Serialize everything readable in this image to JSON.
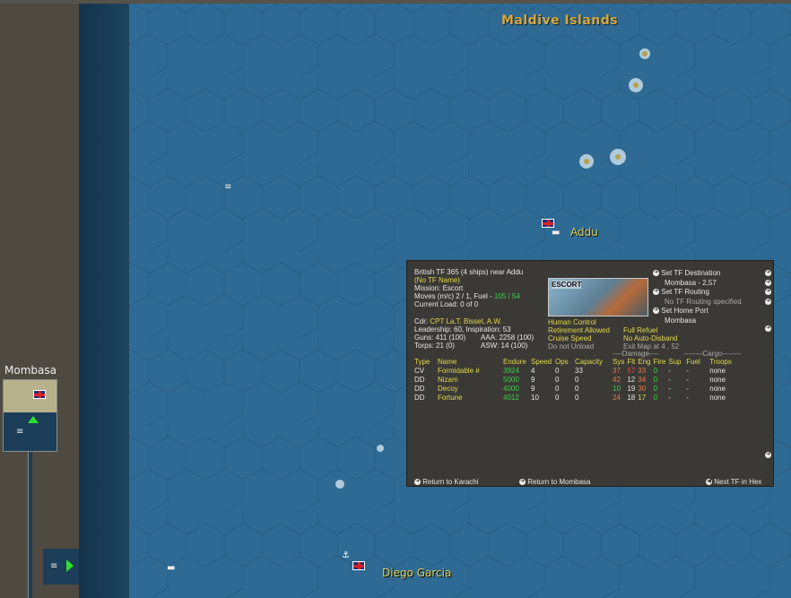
{
  "map": {
    "labels": {
      "maldives": "Maldive Islands",
      "addu": "Addu",
      "diego_garcia": "Diego Garcia",
      "mombasa": "Mombasa"
    },
    "colors": {
      "sea": "#2e6a93",
      "land": "#4f4a41",
      "label": "#d9a83a",
      "port_label": "#e2d25a"
    }
  },
  "panel": {
    "title": "British TF 365 (4 ships) near Addu",
    "tf_name": "(No TF Name)",
    "mission": "Mission: Escort",
    "moves": "Moves (m/c) 2 / 1, Fuel - ",
    "fuel": "105 / 54",
    "load": "Current Load: 0 of 0",
    "cdr_label": "Cdr:",
    "cdr": "CPT La.T. Bisset, A.W.",
    "leadership": "Leadership: 60, Inspiration: 53",
    "guns": "Guns: 411 (100)",
    "aaa": "AAA: 2258 (100)",
    "torps": "Torps: 21 (0)",
    "asw": "ASW: 14 (100)",
    "image_label": "ESCORT",
    "status": {
      "control": "Human Control",
      "retire": "Retirement Allowed",
      "refuel": "Full Refuel",
      "speed": "Cruise Speed",
      "disband": "No Auto-Disband",
      "unload": "Do not Unload",
      "exit": "Exit Map at 4 , 52"
    },
    "actions": {
      "dest": "Set TF Destination",
      "dest_val": "Mombasa - 2,57",
      "routing": "Set TF Routing",
      "routing_val": "No TF Routing specified",
      "home": "Set Home Port",
      "home_val": "Mombasa"
    },
    "groups": {
      "damage": "----Damage----",
      "cargo": "--------Cargo--------"
    },
    "headers": [
      "Type",
      "Name",
      "Endure",
      "Speed",
      "Ops",
      "Capacity",
      "Sys",
      "Flt",
      "Eng",
      "Fire",
      "Sup",
      "Fuel",
      "Troops"
    ],
    "ships": [
      {
        "type": "CV",
        "name": "Formidable #",
        "endure": "3924",
        "speed": "4",
        "ops": "0",
        "cap": "33",
        "sys": "37",
        "flt": "57",
        "eng": "33",
        "fire": "0",
        "sup": "-",
        "fuel": "-",
        "troops": "none"
      },
      {
        "type": "DD",
        "name": "Nizam",
        "endure": "5000",
        "speed": "9",
        "ops": "0",
        "cap": "0",
        "sys": "42",
        "flt": "12",
        "eng": "34",
        "fire": "0",
        "sup": "-",
        "fuel": "-",
        "troops": "none"
      },
      {
        "type": "DD",
        "name": "Decoy",
        "endure": "4000",
        "speed": "9",
        "ops": "0",
        "cap": "0",
        "sys": "10",
        "flt": "19",
        "eng": "30",
        "fire": "0",
        "sup": "-",
        "fuel": "-",
        "troops": "none"
      },
      {
        "type": "DD",
        "name": "Fortune",
        "endure": "4012",
        "speed": "10",
        "ops": "0",
        "cap": "0",
        "sys": "24",
        "flt": "18",
        "eng": "17",
        "fire": "0",
        "sup": "-",
        "fuel": "-",
        "troops": "none"
      }
    ],
    "footer": {
      "karachi": "Return to Karachi",
      "mombasa": "Return to Mombasa",
      "next": "Next TF in Hex"
    }
  }
}
